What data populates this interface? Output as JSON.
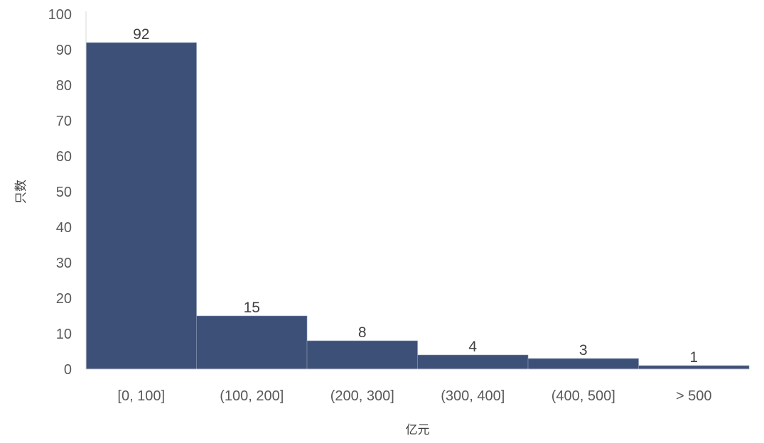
{
  "chart_data": {
    "type": "bar",
    "categories": [
      "[0, 100]",
      "(100, 200]",
      "(200, 300]",
      "(300, 400]",
      "(400, 500]",
      "> 500"
    ],
    "values": [
      92,
      15,
      8,
      4,
      3,
      1
    ],
    "title": "",
    "xlabel": "亿元",
    "ylabel": "只数",
    "ylim": [
      0,
      100
    ],
    "yticks": [
      0,
      10,
      20,
      30,
      40,
      50,
      60,
      70,
      80,
      90,
      100
    ],
    "grid": false,
    "bar_color": "#3d5078",
    "data_labels": true
  }
}
